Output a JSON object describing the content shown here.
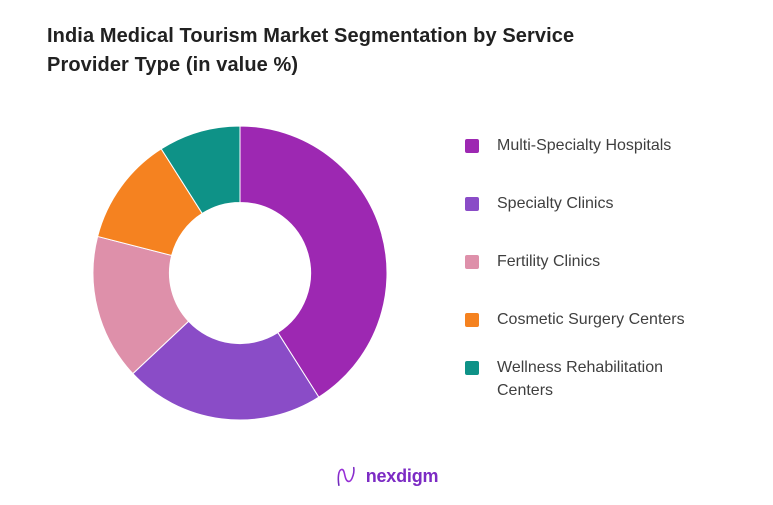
{
  "title": {
    "full": "India Medical Tourism Market Segmentation by Service Provider Type (in value %)",
    "line1": "India Medical Tourism Market Segmentation by Service",
    "line2": "Provider Type (in value %)"
  },
  "legend": {
    "items": [
      {
        "label": "Multi-Specialty Hospitals",
        "color": "#9D28B2"
      },
      {
        "label": "Specialty Clinics",
        "color": "#8A4CC7"
      },
      {
        "label": "Fertility Clinics",
        "color": "#DE90AA"
      },
      {
        "label": "Cosmetic Surgery Centers",
        "color": "#F58220"
      },
      {
        "label": "Wellness Rehabilitation Centers",
        "color": "#0E9287"
      }
    ]
  },
  "footer": {
    "brand": "nexdigm"
  },
  "colors": {
    "background": "#FFFFFF",
    "title_text": "#212121",
    "legend_text": "#3F3F3F",
    "brand_purple": "#7C2BC4"
  },
  "chart_data": {
    "type": "pie",
    "variant": "donut",
    "title": "India Medical Tourism Market Segmentation by Service Provider Type (in value %)",
    "unit": "%",
    "categories": [
      "Multi-Specialty Hospitals",
      "Specialty Clinics",
      "Fertility Clinics",
      "Cosmetic Surgery Centers",
      "Wellness Rehabilitation Centers"
    ],
    "values": [
      41,
      22,
      16,
      12,
      9
    ],
    "colors": [
      "#9D28B2",
      "#8A4CC7",
      "#DE90AA",
      "#F58220",
      "#0E9287"
    ],
    "start_angle_deg": 0,
    "direction": "clockwise",
    "hole_ratio": 0.48,
    "legend_position": "right",
    "data_labels_shown": false,
    "values_estimated_from_angles": true
  }
}
